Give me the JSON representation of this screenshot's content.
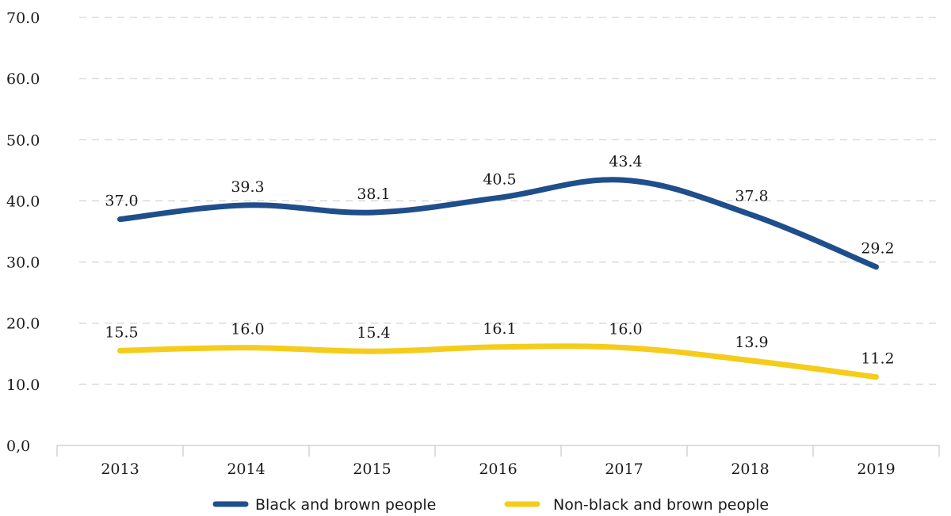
{
  "chart_data": {
    "type": "line",
    "categories": [
      "2013",
      "2014",
      "2015",
      "2016",
      "2017",
      "2018",
      "2019"
    ],
    "y_ticks": [
      "0,0",
      "10.0",
      "20.0",
      "30.0",
      "40.0",
      "50.0",
      "60.0",
      "70.0"
    ],
    "ylim": [
      0,
      70
    ],
    "grid": true,
    "legend_position": "bottom",
    "series": [
      {
        "name": "Black and brown people",
        "color": "#1f4e8c",
        "values": [
          37.0,
          39.3,
          38.1,
          40.5,
          43.4,
          37.8,
          29.2
        ],
        "labels": [
          "37.0",
          "39.3",
          "38.1",
          "40.5",
          "43.4",
          "37.8",
          "29.2"
        ]
      },
      {
        "name": "Non-black and brown people",
        "color": "#f5cc1b",
        "values": [
          15.5,
          16.0,
          15.4,
          16.1,
          16.0,
          13.9,
          11.2
        ],
        "labels": [
          "15.5",
          "16.0",
          "15.4",
          "16.1",
          "16.0",
          "13.9",
          "11.2"
        ]
      }
    ]
  }
}
